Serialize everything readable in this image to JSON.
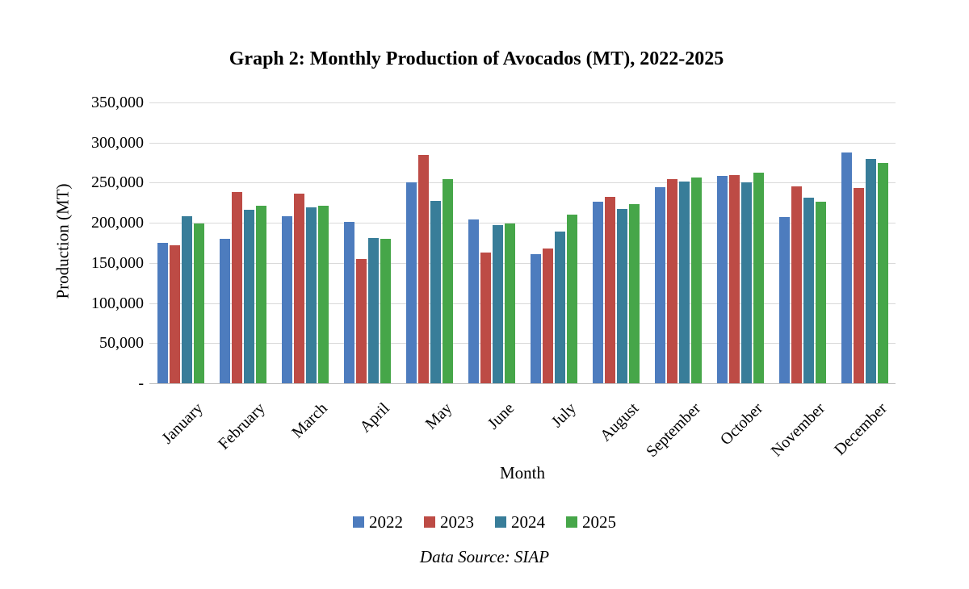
{
  "title": "Graph 2: Monthly Production of Avocados (MT), 2022-2025",
  "data_source": "Data Source: SIAP",
  "chart_data": {
    "type": "bar",
    "title": "Graph 2: Monthly Production of Avocados (MT), 2022-2025",
    "xlabel": "Month",
    "ylabel": "Production (MT)",
    "ylim": [
      0,
      350000
    ],
    "grid": true,
    "legend_position": "bottom",
    "gridline_color": "#d9d9d9",
    "axis_line_color": "#bfbfbf",
    "y_ticks": [
      {
        "value": 0,
        "label": "-"
      },
      {
        "value": 50000,
        "label": "50,000"
      },
      {
        "value": 100000,
        "label": "100,000"
      },
      {
        "value": 150000,
        "label": "150,000"
      },
      {
        "value": 200000,
        "label": "200,000"
      },
      {
        "value": 250000,
        "label": "250,000"
      },
      {
        "value": 300000,
        "label": "300,000"
      },
      {
        "value": 350000,
        "label": "350,000"
      }
    ],
    "categories": [
      "January",
      "February",
      "March",
      "April",
      "May",
      "June",
      "July",
      "August",
      "September",
      "October",
      "November",
      "December"
    ],
    "series": [
      {
        "name": "2022",
        "color": "#4d7cbe",
        "values": [
          175000,
          180000,
          208000,
          201000,
          250000,
          204000,
          161000,
          226000,
          244000,
          258000,
          207000,
          288000
        ]
      },
      {
        "name": "2023",
        "color": "#bd4b45",
        "values": [
          172000,
          238000,
          236000,
          155000,
          285000,
          163000,
          168000,
          232000,
          254000,
          259000,
          245000,
          243000
        ]
      },
      {
        "name": "2024",
        "color": "#387d99",
        "values": [
          208000,
          216000,
          219000,
          181000,
          227000,
          197000,
          189000,
          217000,
          251000,
          250000,
          231000,
          280000
        ]
      },
      {
        "name": "2025",
        "color": "#46a649",
        "values": [
          199000,
          221000,
          221000,
          180000,
          254000,
          199000,
          210000,
          223000,
          256000,
          262000,
          226000,
          275000
        ]
      }
    ]
  }
}
